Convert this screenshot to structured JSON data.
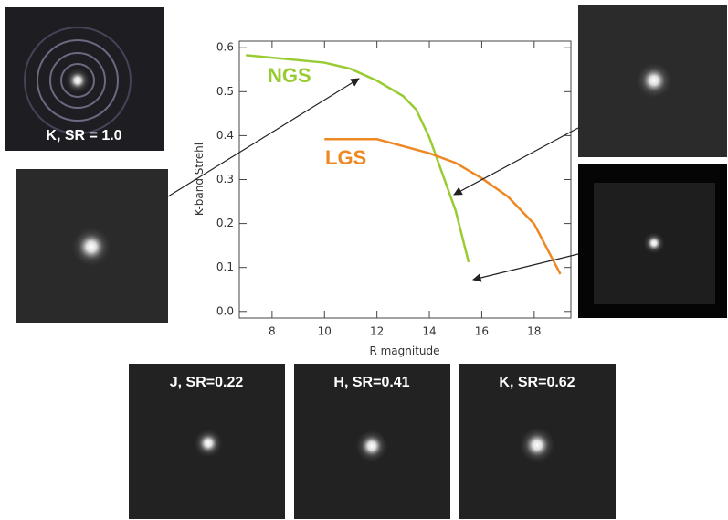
{
  "chart_data": {
    "type": "line",
    "xlabel": "R magnitude",
    "ylabel": "K-band Strehl",
    "xlim": [
      6.75,
      19.4
    ],
    "ylim": [
      -0.015,
      0.615
    ],
    "xticks": [
      8,
      10,
      12,
      14,
      16,
      18
    ],
    "yticks": [
      {
        "value": 0,
        "label": "0.0"
      },
      0.1,
      0.2,
      0.3,
      0.4,
      0.5,
      0.6
    ],
    "series": [
      {
        "name": "NGS",
        "color": "#99cc33",
        "x": [
          7,
          10,
          11,
          12,
          13,
          13.5,
          14,
          14.5,
          15,
          15.5
        ],
        "values": [
          0.583,
          0.566,
          0.552,
          0.525,
          0.49,
          0.459,
          0.396,
          0.313,
          0.23,
          0.112
        ]
      },
      {
        "name": "LGS",
        "color": "#ee8822",
        "x": [
          10,
          12,
          13,
          14,
          15,
          16,
          17,
          18,
          19
        ],
        "values": [
          0.392,
          0.392,
          0.376,
          0.36,
          0.338,
          0.303,
          0.261,
          0.199,
          0.085
        ]
      }
    ]
  },
  "images": [
    {
      "caption": "K, SR = 1.0"
    },
    {
      "caption": "J, SR=0.22"
    },
    {
      "caption": "H, SR=0.41"
    },
    {
      "caption": "K, SR=0.62"
    }
  ]
}
